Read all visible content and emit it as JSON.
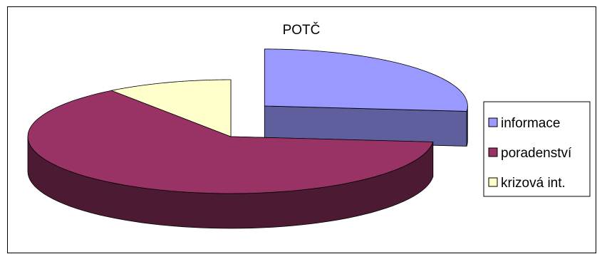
{
  "chart_data": {
    "type": "pie",
    "style": "3d-exploded",
    "title": "POTČ",
    "categories": [
      "informace",
      "poradenství",
      "krizová int."
    ],
    "values": [
      26.5,
      63.5,
      10
    ],
    "unit": "percent (estimated share)",
    "legend_position": "right",
    "colors": {
      "informace": "#9999FF",
      "poradenství": "#993366",
      "krizová int.": "#FFFFCC"
    },
    "series": [
      {
        "values": [
          26.5,
          63.5,
          10
        ]
      }
    ]
  }
}
